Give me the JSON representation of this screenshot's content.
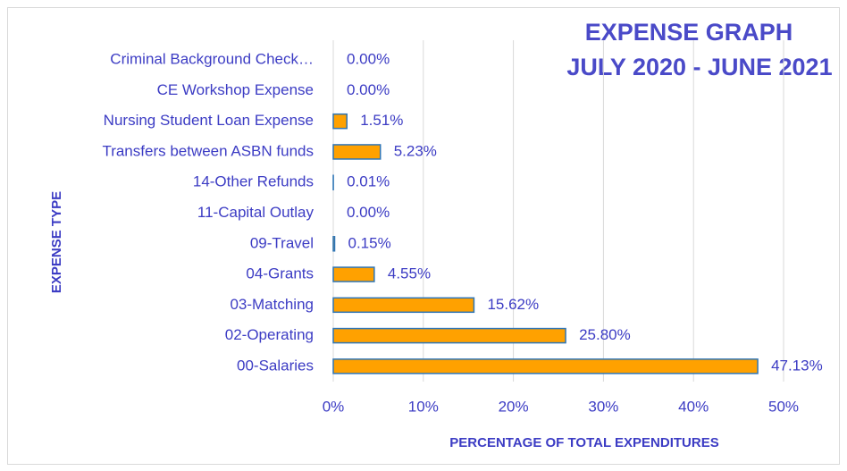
{
  "chart_data": {
    "type": "bar",
    "orientation": "horizontal",
    "title": "EXPENSE GRAPH",
    "subtitle": "JULY 2020 - JUNE 2021",
    "y_label": "EXPENSE TYPE",
    "x_label": "PERCENTAGE OF TOTAL EXPENDITURES",
    "categories": [
      "Criminal Background Check…",
      "CE Workshop Expense",
      "Nursing Student Loan Expense",
      "Transfers between ASBN funds",
      "14-Other Refunds",
      "11-Capital Outlay",
      "09-Travel",
      "04-Grants",
      "03-Matching",
      "02-Operating",
      "00-Salaries"
    ],
    "values": [
      0,
      0,
      1.51,
      5.23,
      0.01,
      0,
      0.15,
      4.55,
      15.62,
      25.8,
      47.13
    ],
    "value_labels": [
      "0.00%",
      "0.00%",
      "1.51%",
      "5.23%",
      "0.01%",
      "0.00%",
      "0.15%",
      "4.55%",
      "15.62%",
      "25.80%",
      "47.13%"
    ],
    "color": "#ffa100",
    "edge_color": "#2e75b6",
    "xlim": [
      0,
      50
    ],
    "xticks": [
      {
        "value": 0,
        "label": "0%"
      },
      {
        "value": 10,
        "label": "10%"
      },
      {
        "value": 20,
        "label": "20%"
      },
      {
        "value": 30,
        "label": "30%"
      },
      {
        "value": 40,
        "label": "40%"
      },
      {
        "value": 50,
        "label": "50%"
      }
    ],
    "grid": true
  }
}
